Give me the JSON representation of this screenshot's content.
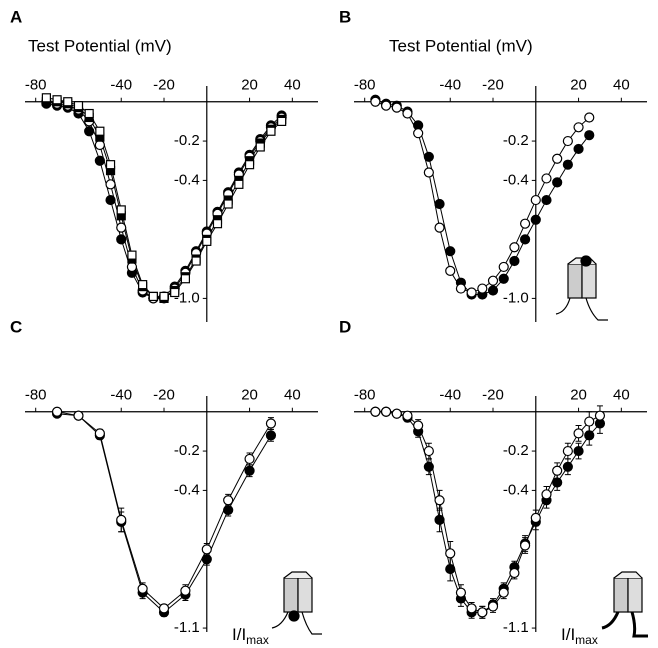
{
  "chart_data": [
    {
      "type": "line",
      "label": "A",
      "xlabel": "Test Potential (mV)",
      "xlim": [
        -85,
        52
      ],
      "ylim": [
        -1.12,
        0.08
      ],
      "xticks": [
        -80,
        -40,
        -20,
        20,
        40
      ],
      "yticks": [
        -0.2,
        -0.4,
        {
          "value": -1,
          "label": "-1.0"
        }
      ],
      "x": [
        -75,
        -70,
        -65,
        -60,
        -55,
        -50,
        -45,
        -40,
        -35,
        -30,
        -25,
        -20,
        -15,
        -10,
        -5,
        0,
        5,
        10,
        15,
        20,
        25,
        30,
        35
      ],
      "series": [
        {
          "marker": "filled-circle",
          "color": "#000000",
          "values": [
            -0.01,
            -0.02,
            -0.03,
            -0.06,
            -0.15,
            -0.3,
            -0.5,
            -0.7,
            -0.87,
            -0.97,
            -1.0,
            -0.99,
            -0.94,
            -0.86,
            -0.76,
            -0.66,
            -0.56,
            -0.46,
            -0.36,
            -0.27,
            -0.19,
            -0.12,
            -0.07
          ]
        },
        {
          "marker": "open-circle",
          "color": "#000000",
          "values": [
            0,
            -0.01,
            -0.02,
            -0.04,
            -0.1,
            -0.22,
            -0.42,
            -0.64,
            -0.84,
            -0.96,
            -1.0,
            -1.0,
            -0.95,
            -0.87,
            -0.77,
            -0.67,
            -0.57,
            -0.47,
            -0.37,
            -0.28,
            -0.2,
            -0.13,
            -0.08
          ]
        },
        {
          "marker": "filled-square",
          "color": "#000000",
          "values": [
            0,
            0,
            -0.01,
            -0.03,
            -0.08,
            -0.18,
            -0.35,
            -0.58,
            -0.8,
            -0.94,
            -0.99,
            -1.0,
            -0.96,
            -0.89,
            -0.8,
            -0.7,
            -0.6,
            -0.5,
            -0.4,
            -0.3,
            -0.21,
            -0.14,
            -0.09
          ]
        },
        {
          "marker": "open-square",
          "color": "#000000",
          "values": [
            0.02,
            0.01,
            0,
            -0.02,
            -0.06,
            -0.15,
            -0.32,
            -0.55,
            -0.78,
            -0.93,
            -0.99,
            -0.99,
            -0.97,
            -0.9,
            -0.81,
            -0.71,
            -0.62,
            -0.52,
            -0.42,
            -0.32,
            -0.23,
            -0.15,
            -0.1
          ]
        }
      ]
    },
    {
      "type": "line",
      "label": "B",
      "xlabel": "Test Potential (mV)",
      "xlim": [
        -85,
        52
      ],
      "ylim": [
        -1.12,
        0.08
      ],
      "xticks": [
        -80,
        -40,
        -20,
        20,
        40
      ],
      "yticks": [
        -0.2,
        -0.4,
        {
          "value": -1,
          "label": "-1.0"
        }
      ],
      "x": [
        -75,
        -70,
        -65,
        -60,
        -55,
        -50,
        -45,
        -40,
        -35,
        -30,
        -25,
        -20,
        -15,
        -10,
        -5,
        0,
        5,
        10,
        15,
        20,
        25
      ],
      "series": [
        {
          "marker": "filled-circle",
          "color": "#000000",
          "values": [
            0.01,
            -0.01,
            -0.02,
            -0.05,
            -0.12,
            -0.28,
            -0.52,
            -0.76,
            -0.92,
            -0.98,
            -0.98,
            -0.96,
            -0.9,
            -0.81,
            -0.7,
            -0.6,
            -0.5,
            -0.41,
            -0.32,
            -0.24,
            -0.17
          ]
        },
        {
          "marker": "open-circle",
          "color": "#000000",
          "values": [
            0,
            -0.02,
            -0.03,
            -0.06,
            -0.16,
            -0.36,
            -0.64,
            -0.86,
            -0.95,
            -0.97,
            -0.95,
            -0.91,
            -0.84,
            -0.74,
            -0.62,
            -0.5,
            -0.39,
            -0.29,
            -0.2,
            -0.13,
            -0.08
          ]
        }
      ]
    },
    {
      "type": "line",
      "label": "C",
      "ylabel": {
        "text": "I/I",
        "sub": "max"
      },
      "xlim": [
        -85,
        52
      ],
      "ylim": [
        -1.12,
        0.08
      ],
      "xticks": [
        -80,
        -40,
        -20,
        20,
        40
      ],
      "yticks": [
        -0.2,
        -0.4,
        -1.1
      ],
      "x": [
        -70,
        -60,
        -50,
        -40,
        -30,
        -20,
        -10,
        0,
        10,
        20,
        30
      ],
      "series": [
        {
          "marker": "filled-circle",
          "color": "#000000",
          "values": [
            -0.01,
            -0.02,
            -0.12,
            -0.56,
            -0.92,
            -1.02,
            -0.93,
            -0.75,
            -0.5,
            -0.3,
            -0.12
          ],
          "errors": [
            0.01,
            0.01,
            0.02,
            0.05,
            0.03,
            0.02,
            0.03,
            0.03,
            0.03,
            0.03,
            0.03
          ]
        },
        {
          "marker": "open-circle",
          "color": "#000000",
          "values": [
            0,
            -0.02,
            -0.11,
            -0.55,
            -0.9,
            -1.0,
            -0.91,
            -0.7,
            -0.45,
            -0.24,
            -0.06
          ],
          "errors": [
            0.01,
            0.01,
            0.02,
            0.06,
            0.03,
            0.02,
            0.03,
            0.03,
            0.03,
            0.03,
            0.03
          ]
        }
      ]
    },
    {
      "type": "line",
      "label": "D",
      "ylabel": {
        "text": "I/I",
        "sub": "max"
      },
      "xlim": [
        -85,
        52
      ],
      "ylim": [
        -1.12,
        0.08
      ],
      "xticks": [
        -80,
        -40,
        -20,
        20,
        40
      ],
      "yticks": [
        -0.2,
        -0.4,
        -1.1
      ],
      "x": [
        -75,
        -70,
        -65,
        -60,
        -55,
        -50,
        -45,
        -40,
        -35,
        -30,
        -25,
        -20,
        -15,
        -10,
        -5,
        0,
        5,
        10,
        15,
        20,
        25,
        30
      ],
      "series": [
        {
          "marker": "filled-circle",
          "color": "#000000",
          "values": [
            0,
            0,
            -0.01,
            -0.03,
            -0.1,
            -0.28,
            -0.55,
            -0.8,
            -0.95,
            -1.02,
            -1.02,
            -0.98,
            -0.9,
            -0.79,
            -0.67,
            -0.56,
            -0.45,
            -0.36,
            -0.28,
            -0.2,
            -0.12,
            -0.06
          ],
          "errors": [
            0.01,
            0.01,
            0.01,
            0.02,
            0.03,
            0.04,
            0.06,
            0.06,
            0.04,
            0.03,
            0.03,
            0.03,
            0.03,
            0.03,
            0.04,
            0.04,
            0.04,
            0.04,
            0.04,
            0.04,
            0.05,
            0.05
          ]
        },
        {
          "marker": "open-circle",
          "color": "#000000",
          "values": [
            0,
            0,
            -0.01,
            -0.02,
            -0.07,
            -0.2,
            -0.45,
            -0.72,
            -0.92,
            -1.0,
            -1.02,
            -0.99,
            -0.92,
            -0.82,
            -0.68,
            -0.54,
            -0.42,
            -0.3,
            -0.2,
            -0.11,
            -0.05,
            -0.02
          ],
          "errors": [
            0.01,
            0.01,
            0.01,
            0.02,
            0.03,
            0.04,
            0.05,
            0.06,
            0.04,
            0.03,
            0.03,
            0.03,
            0.03,
            0.03,
            0.04,
            0.04,
            0.04,
            0.04,
            0.04,
            0.04,
            0.05,
            0.05
          ]
        }
      ]
    }
  ]
}
